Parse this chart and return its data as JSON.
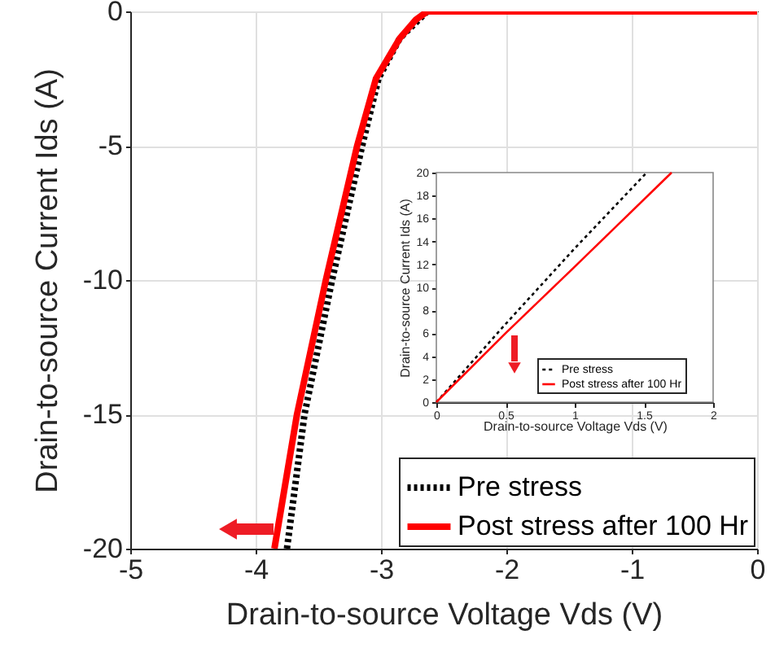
{
  "chart_data": [
    {
      "type": "line",
      "xlabel": "Drain-to-source Voltage Vds (V)",
      "ylabel": "Drain-to-source Current Ids (A)",
      "xlim": [
        -5,
        0
      ],
      "ylim": [
        -20,
        0
      ],
      "xticks": [
        -5,
        -4,
        -3,
        -2,
        -1,
        0
      ],
      "yticks": [
        -20,
        -15,
        -10,
        -5,
        0
      ],
      "grid": true,
      "legend": "bottom right",
      "series": [
        {
          "name": "Pre stress",
          "color": "#000000",
          "line_style": "dotted",
          "x": [
            -3.75,
            -3.61,
            -3.39,
            -3.15,
            -3.02,
            -2.85,
            -2.63,
            -2.5,
            -1,
            0
          ],
          "values": [
            -20,
            -15,
            -10,
            -5,
            -2.5,
            -1,
            0,
            0,
            0,
            0
          ]
        },
        {
          "name": "Post stress after 100 Hr",
          "color": "#ff0000",
          "line_style": "solid",
          "x": [
            -3.85,
            -3.67,
            -3.44,
            -3.19,
            -3.04,
            -2.85,
            -2.72,
            -2.63,
            -2.5,
            -1,
            0
          ],
          "values": [
            -20,
            -15,
            -10,
            -5,
            -2.5,
            -1,
            -0.3,
            0,
            0,
            0,
            0
          ]
        }
      ]
    },
    {
      "type": "line",
      "xlabel": "Drain-to-source Voltage Vds (V)",
      "ylabel": "Drain-to-source Current Ids (A)",
      "xlim": [
        0,
        2
      ],
      "ylim": [
        0,
        20
      ],
      "xticks": [
        0,
        0.5,
        1,
        1.5,
        2
      ],
      "yticks": [
        0,
        2,
        4,
        6,
        8,
        10,
        12,
        14,
        16,
        18,
        20
      ],
      "legend": "bottom right",
      "series": [
        {
          "name": "Pre stress",
          "color": "#000000",
          "line_style": "dotted",
          "x": [
            0,
            0.5,
            1,
            1.52
          ],
          "values": [
            0,
            6.8,
            13.4,
            20
          ]
        },
        {
          "name": "Post stress after 100 Hr",
          "color": "#ff0000",
          "line_style": "solid",
          "x": [
            0,
            0.5,
            1,
            1.7
          ],
          "values": [
            0,
            6,
            11.8,
            20
          ]
        }
      ]
    }
  ]
}
